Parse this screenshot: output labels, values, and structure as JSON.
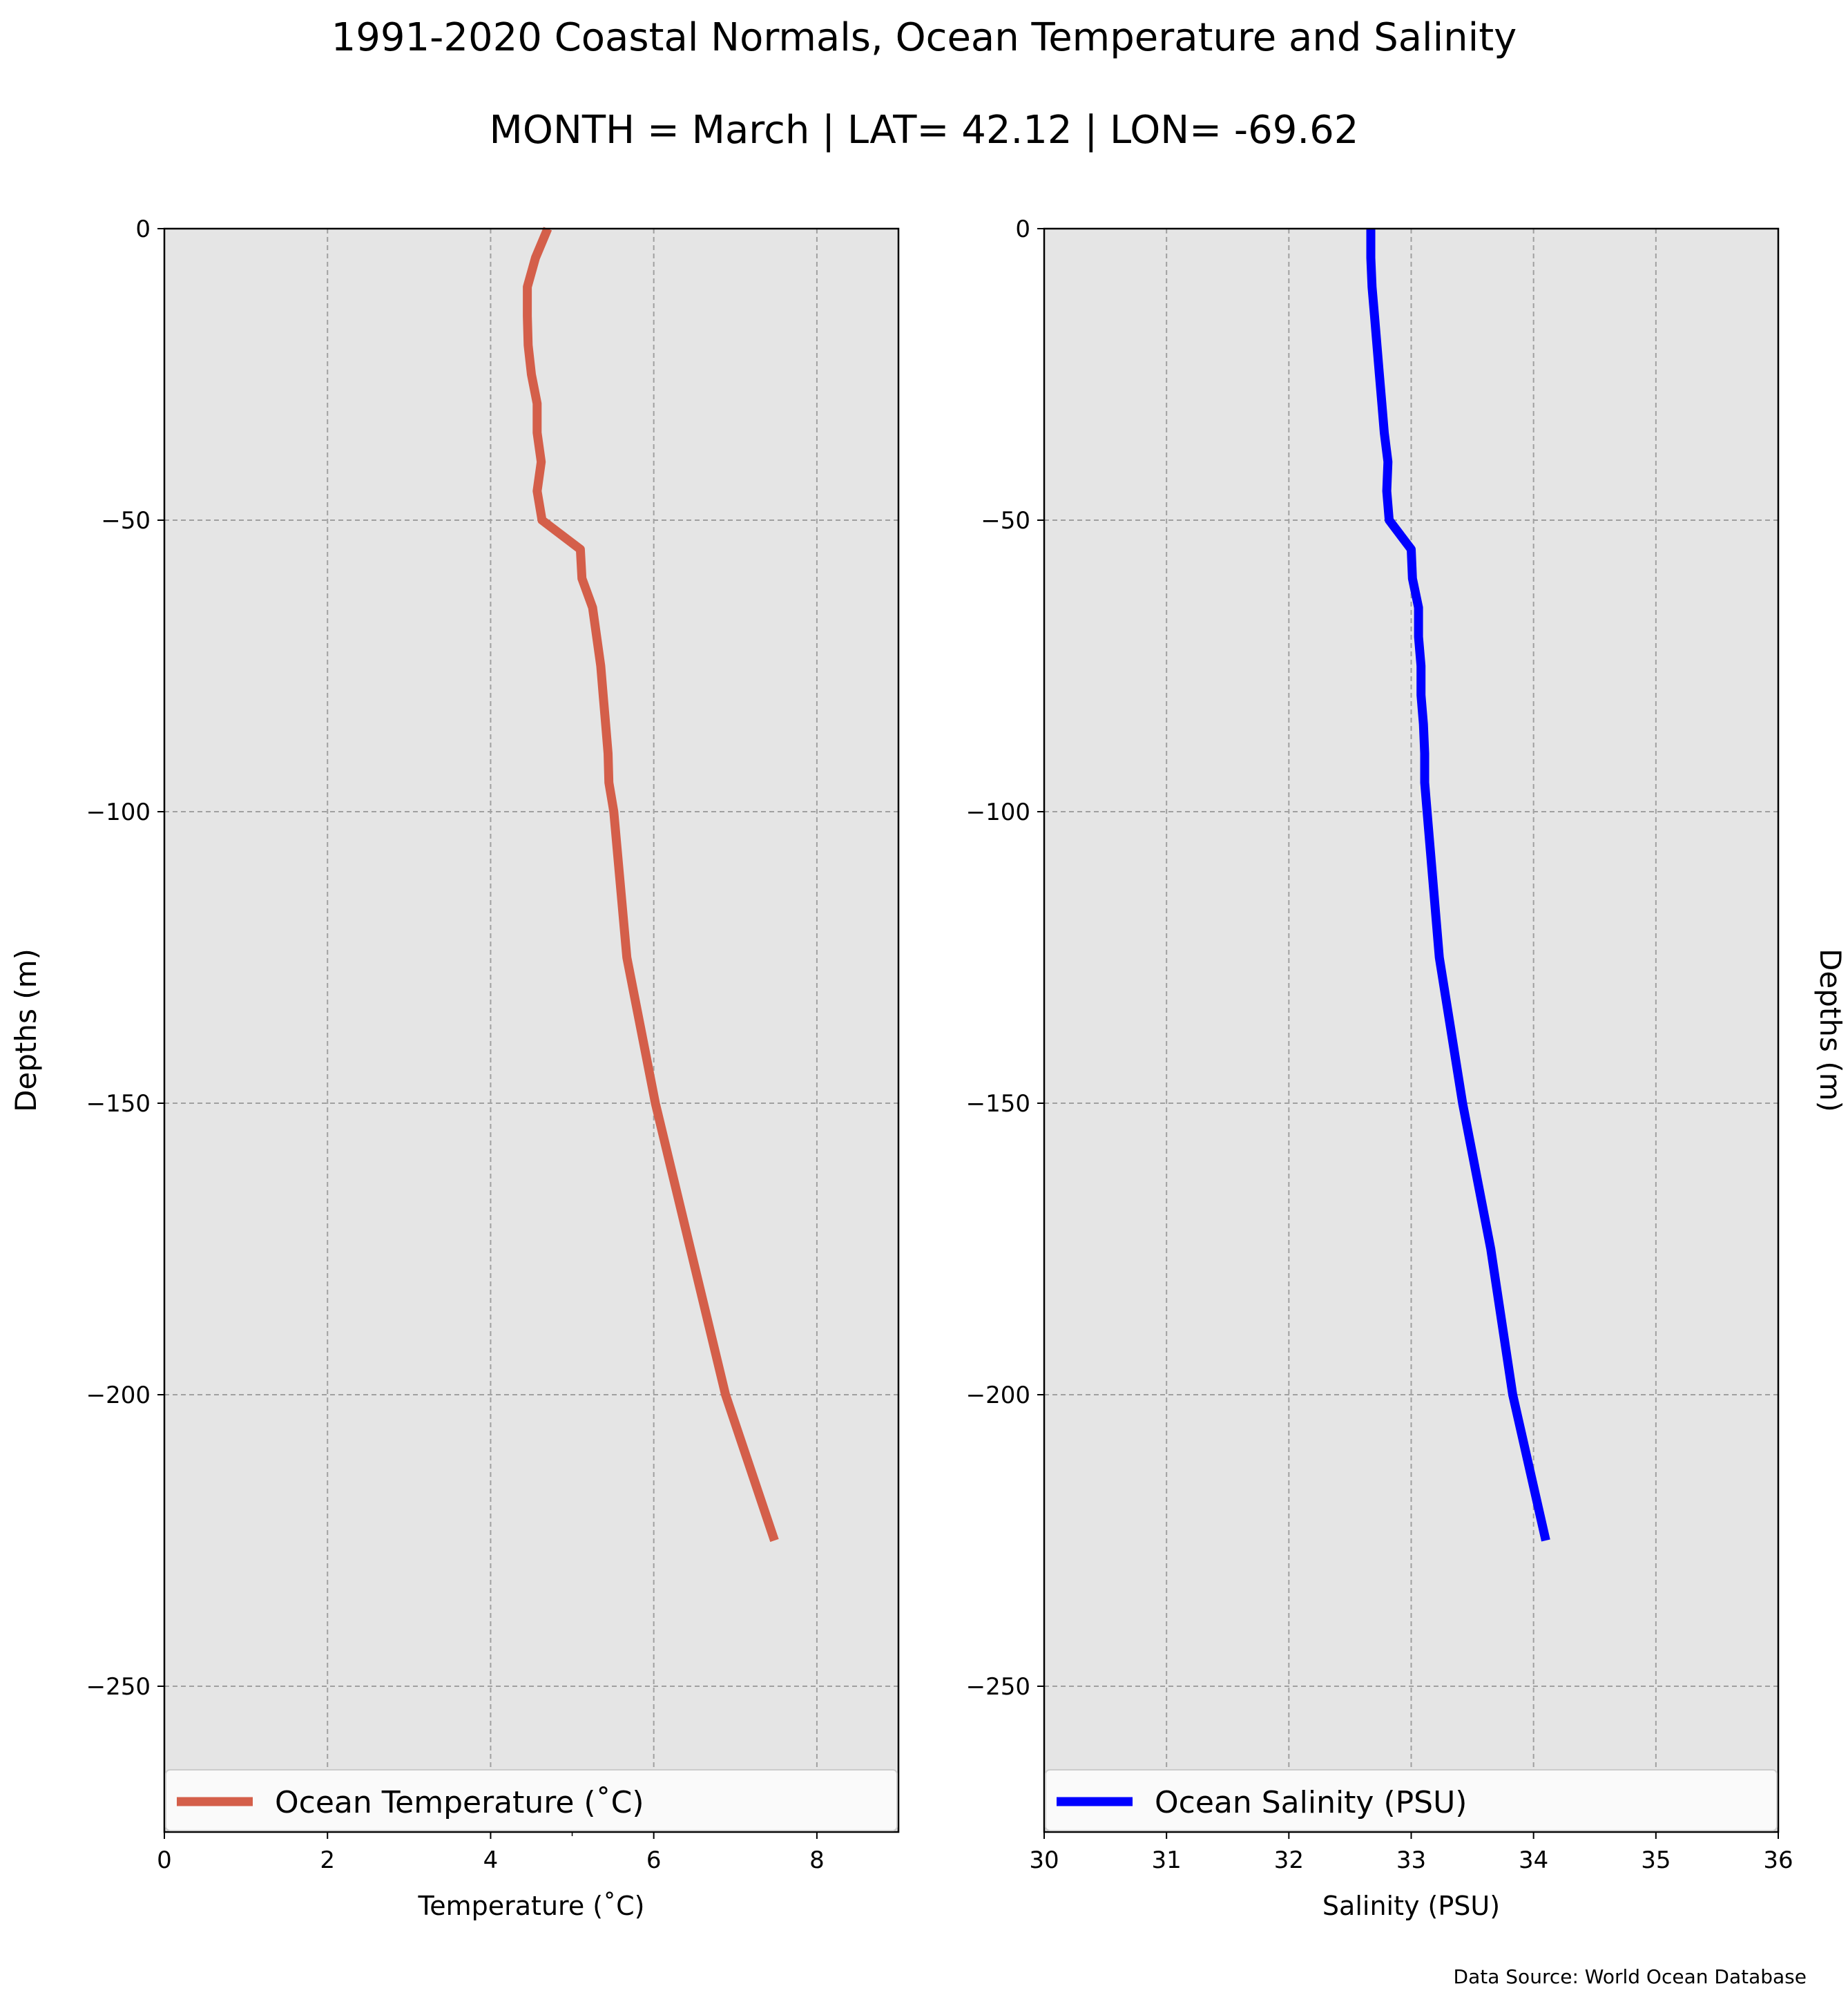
{
  "figure": {
    "title": "1991-2020 Coastal Normals, Ocean Temperature and Salinity",
    "subtitle": "MONTH = March | LAT= 42.12 | LON= -69.62",
    "source": "Data Source: World Ocean Database"
  },
  "chart_data": [
    {
      "type": "line",
      "xlabel": "Temperature (˚C)",
      "ylabel": "Depths (m)",
      "xlim": [
        0,
        9
      ],
      "ylim": [
        -275,
        0
      ],
      "xticks": [
        0,
        2,
        4,
        6,
        8
      ],
      "xtick_labels": [
        "0",
        "2",
        "4",
        "6",
        "8"
      ],
      "yticks": [
        0,
        -50,
        -100,
        -150,
        -200,
        -250
      ],
      "ytick_labels": [
        "0",
        "−50",
        "−100",
        "−150",
        "−200",
        "−250"
      ],
      "grid": true,
      "legend_position": "bottom",
      "series": [
        {
          "name": "Ocean Temperature (˚C)",
          "color": "#d45f4a",
          "points": [
            {
              "x": 4.7,
              "y": 0
            },
            {
              "x": 4.55,
              "y": -5
            },
            {
              "x": 4.45,
              "y": -10
            },
            {
              "x": 4.45,
              "y": -15
            },
            {
              "x": 4.46,
              "y": -20
            },
            {
              "x": 4.5,
              "y": -25
            },
            {
              "x": 4.57,
              "y": -30
            },
            {
              "x": 4.57,
              "y": -35
            },
            {
              "x": 4.62,
              "y": -40
            },
            {
              "x": 4.57,
              "y": -45
            },
            {
              "x": 4.63,
              "y": -50
            },
            {
              "x": 5.1,
              "y": -55
            },
            {
              "x": 5.12,
              "y": -60
            },
            {
              "x": 5.25,
              "y": -65
            },
            {
              "x": 5.3,
              "y": -70
            },
            {
              "x": 5.35,
              "y": -75
            },
            {
              "x": 5.38,
              "y": -80
            },
            {
              "x": 5.41,
              "y": -85
            },
            {
              "x": 5.44,
              "y": -90
            },
            {
              "x": 5.45,
              "y": -95
            },
            {
              "x": 5.51,
              "y": -100
            },
            {
              "x": 5.67,
              "y": -125
            },
            {
              "x": 6.02,
              "y": -150
            },
            {
              "x": 6.45,
              "y": -175
            },
            {
              "x": 6.88,
              "y": -200
            },
            {
              "x": 7.48,
              "y": -225
            }
          ]
        }
      ]
    },
    {
      "type": "line",
      "xlabel": "Salinity (PSU)",
      "ylabel": "Depths (m)",
      "xlim": [
        30,
        36
      ],
      "ylim": [
        -275,
        0
      ],
      "xticks": [
        30,
        31,
        32,
        33,
        34,
        35,
        36
      ],
      "xtick_labels": [
        "30",
        "31",
        "32",
        "33",
        "34",
        "35",
        "36"
      ],
      "yticks": [
        0,
        -50,
        -100,
        -150,
        -200,
        -250
      ],
      "ytick_labels": [
        "0",
        "−50",
        "−100",
        "−150",
        "−200",
        "−250"
      ],
      "grid": true,
      "legend_position": "bottom",
      "series": [
        {
          "name": "Ocean Salinity (PSU)",
          "color": "#0000ff",
          "points": [
            {
              "x": 32.67,
              "y": 0
            },
            {
              "x": 32.67,
              "y": -5
            },
            {
              "x": 32.68,
              "y": -10
            },
            {
              "x": 32.7,
              "y": -15
            },
            {
              "x": 32.72,
              "y": -20
            },
            {
              "x": 32.74,
              "y": -25
            },
            {
              "x": 32.76,
              "y": -30
            },
            {
              "x": 32.78,
              "y": -35
            },
            {
              "x": 32.81,
              "y": -40
            },
            {
              "x": 32.8,
              "y": -45
            },
            {
              "x": 32.82,
              "y": -50
            },
            {
              "x": 33.0,
              "y": -55
            },
            {
              "x": 33.01,
              "y": -60
            },
            {
              "x": 33.06,
              "y": -65
            },
            {
              "x": 33.06,
              "y": -70
            },
            {
              "x": 33.08,
              "y": -75
            },
            {
              "x": 33.08,
              "y": -80
            },
            {
              "x": 33.1,
              "y": -85
            },
            {
              "x": 33.11,
              "y": -90
            },
            {
              "x": 33.11,
              "y": -95
            },
            {
              "x": 33.13,
              "y": -100
            },
            {
              "x": 33.23,
              "y": -125
            },
            {
              "x": 33.42,
              "y": -150
            },
            {
              "x": 33.65,
              "y": -175
            },
            {
              "x": 33.83,
              "y": -200
            },
            {
              "x": 34.1,
              "y": -225
            }
          ]
        }
      ]
    }
  ]
}
